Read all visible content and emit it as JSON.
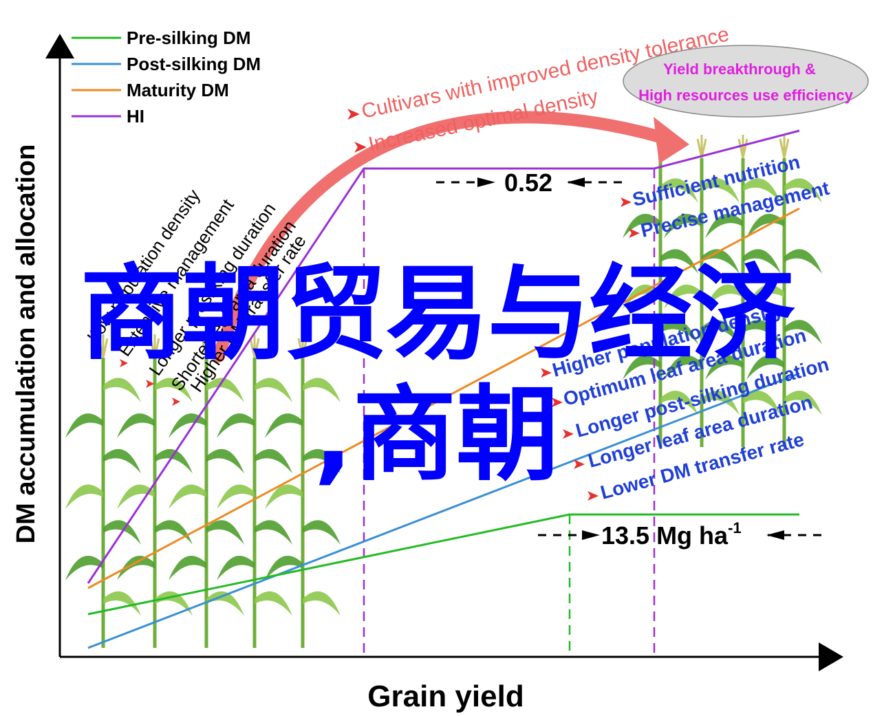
{
  "axes": {
    "y_label": "DM accumulation and allocation",
    "x_label": "Grain yield"
  },
  "legend": [
    {
      "label": "Pre-silking DM",
      "color": "#22bb22"
    },
    {
      "label": "Post-silking DM",
      "color": "#3a8fd6"
    },
    {
      "label": "Maturity DM",
      "color": "#ee8a22"
    },
    {
      "label": "HI",
      "color": "#9b30d9"
    }
  ],
  "left_factors": [
    "Low population density",
    "Extensive management",
    "Longer presilking duration",
    "Shorter leaf area duration",
    "Higher DM transfer rate"
  ],
  "right_factors_top": [
    "Sufficient nutrition",
    "Precise management"
  ],
  "right_factors_bottom": [
    "Higher population density",
    "Optimum leaf area duration",
    "Longer  post-silking duration",
    "Longer leaf area duration",
    "Lower DM transfer rate"
  ],
  "arrow_labels": [
    "Cultivars with improved density tolerance",
    "Increased optimal density"
  ],
  "ellipse_text": {
    "line1": "Yield breakthrough &",
    "line2": "High resources use efficiency"
  },
  "annotations": {
    "hi_plateau": "0.52",
    "yield_value": "13.5 Mg ha",
    "yield_unit_sup": "-1"
  },
  "watermark": {
    "line1": "商朝贸易与经济",
    "line2": ",商朝"
  },
  "colors": {
    "pre_silking": "#22bb22",
    "post_silking": "#3a8fd6",
    "maturity": "#ee8a22",
    "hi": "#9b30d9",
    "red": "#e8302e",
    "blue_text": "#1f3fd8",
    "magenta": "#e020e0",
    "watermark": "#0000ff"
  }
}
